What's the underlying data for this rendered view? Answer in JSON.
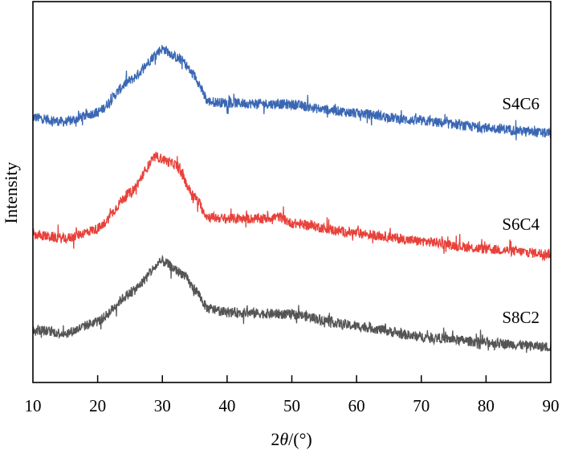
{
  "chart_data": {
    "type": "line",
    "title": "",
    "xlabel_prefix": "2",
    "xlabel_theta": "θ",
    "xlabel_suffix": "/(°)",
    "ylabel": "Intensity",
    "xlim": [
      10,
      90
    ],
    "ylim": [
      0,
      100
    ],
    "xticks": [
      10,
      20,
      30,
      40,
      50,
      60,
      70,
      80,
      90
    ],
    "yticks": [],
    "grid": false,
    "legend": "inline labels at right end of each curve",
    "series": [
      {
        "name": "S4C6",
        "color": "#3a67b4",
        "x": [
          10,
          15,
          20,
          25,
          30,
          33,
          35,
          37,
          40,
          45,
          50,
          55,
          60,
          70,
          80,
          90
        ],
        "y": [
          69.6,
          68.4,
          70.9,
          79.3,
          87.6,
          84.6,
          80.4,
          73.8,
          73.4,
          73.2,
          73.0,
          71.7,
          70.7,
          68.6,
          66.9,
          65.4
        ]
      },
      {
        "name": "S6C4",
        "color": "#e8413a",
        "x": [
          10,
          15,
          20,
          25,
          29,
          32,
          35,
          37,
          40,
          45,
          48,
          50,
          60,
          70,
          80,
          90
        ],
        "y": [
          38.8,
          37.8,
          40.3,
          49.8,
          59.3,
          57.2,
          48.7,
          43.5,
          43.0,
          43.0,
          43.5,
          41.8,
          39.2,
          37.1,
          35.0,
          33.8
        ]
      },
      {
        "name": "S8C2",
        "color": "#555555",
        "x": [
          10,
          15,
          20,
          25,
          30,
          33,
          35,
          37,
          40,
          50,
          60,
          70,
          80,
          90
        ],
        "y": [
          13.9,
          12.9,
          16.0,
          23.4,
          31.8,
          28.7,
          24.5,
          19.4,
          18.4,
          17.9,
          14.8,
          12.0,
          10.5,
          9.3
        ]
      }
    ]
  }
}
